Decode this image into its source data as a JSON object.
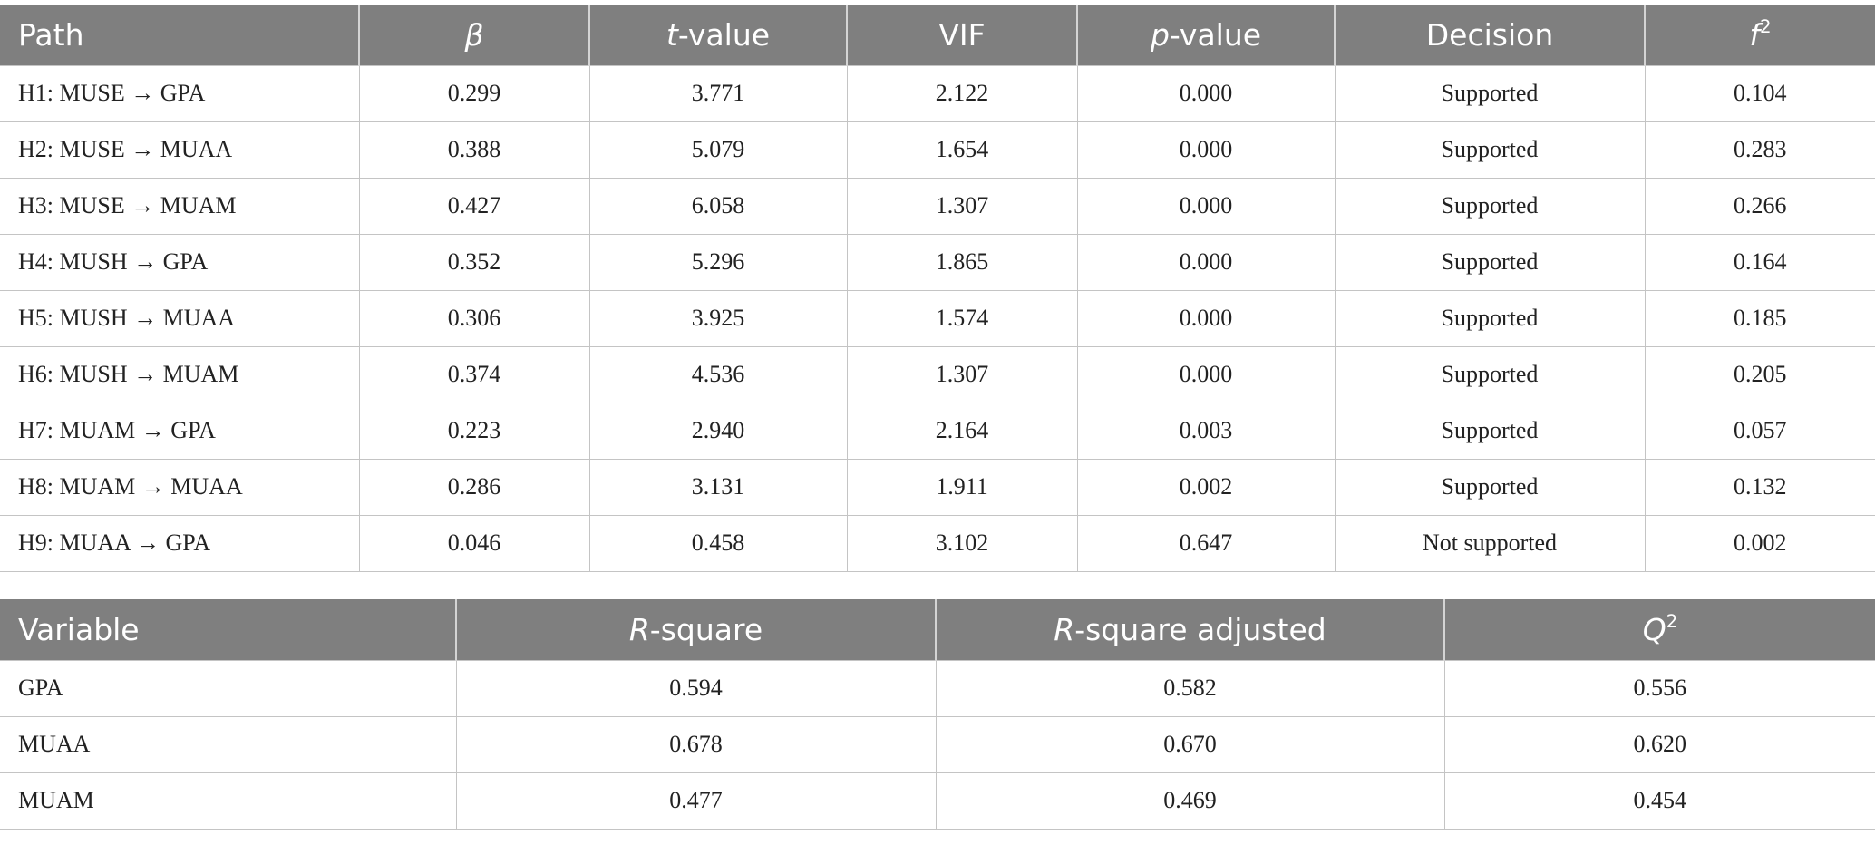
{
  "path_table": {
    "headers": {
      "path": "Path",
      "beta": "β",
      "t_value_var": "t",
      "t_value_suffix": "-value",
      "vif": "VIF",
      "p_value_var": "p",
      "p_value_suffix": "-value",
      "decision": "Decision",
      "f2_var": "f",
      "f2_sup": "2"
    },
    "rows": [
      {
        "path": "H1: MUSE → GPA",
        "beta": "0.299",
        "t": "3.771",
        "vif": "2.122",
        "p": "0.000",
        "decision": "Supported",
        "f2": "0.104"
      },
      {
        "path": "H2: MUSE → MUAA",
        "beta": "0.388",
        "t": "5.079",
        "vif": "1.654",
        "p": "0.000",
        "decision": "Supported",
        "f2": "0.283"
      },
      {
        "path": "H3: MUSE → MUAM",
        "beta": "0.427",
        "t": "6.058",
        "vif": "1.307",
        "p": "0.000",
        "decision": "Supported",
        "f2": "0.266"
      },
      {
        "path": "H4: MUSH → GPA",
        "beta": "0.352",
        "t": "5.296",
        "vif": "1.865",
        "p": "0.000",
        "decision": "Supported",
        "f2": "0.164"
      },
      {
        "path": "H5: MUSH → MUAA",
        "beta": "0.306",
        "t": "3.925",
        "vif": "1.574",
        "p": "0.000",
        "decision": "Supported",
        "f2": "0.185"
      },
      {
        "path": "H6: MUSH → MUAM",
        "beta": "0.374",
        "t": "4.536",
        "vif": "1.307",
        "p": "0.000",
        "decision": "Supported",
        "f2": "0.205"
      },
      {
        "path": "H7: MUAM → GPA",
        "beta": "0.223",
        "t": "2.940",
        "vif": "2.164",
        "p": "0.003",
        "decision": "Supported",
        "f2": "0.057"
      },
      {
        "path": "H8: MUAM → MUAA",
        "beta": "0.286",
        "t": "3.131",
        "vif": "1.911",
        "p": "0.002",
        "decision": "Supported",
        "f2": "0.132"
      },
      {
        "path": "H9: MUAA → GPA",
        "beta": "0.046",
        "t": "0.458",
        "vif": "3.102",
        "p": "0.647",
        "decision": "Not supported",
        "f2": "0.002"
      }
    ]
  },
  "variable_table": {
    "headers": {
      "variable": "Variable",
      "r2_var": "R",
      "r2_suffix": "-square",
      "r2adj_var": "R",
      "r2adj_suffix": "-square adjusted",
      "q2_var": "Q",
      "q2_sup": "2"
    },
    "rows": [
      {
        "variable": "GPA",
        "r2": "0.594",
        "r2adj": "0.582",
        "q2": "0.556"
      },
      {
        "variable": "MUAA",
        "r2": "0.678",
        "r2adj": "0.670",
        "q2": "0.620"
      },
      {
        "variable": "MUAM",
        "r2": "0.477",
        "r2adj": "0.469",
        "q2": "0.454"
      }
    ]
  }
}
